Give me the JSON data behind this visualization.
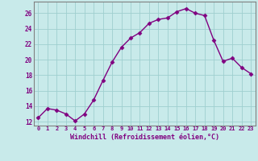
{
  "x": [
    0,
    1,
    2,
    3,
    4,
    5,
    6,
    7,
    8,
    9,
    10,
    11,
    12,
    13,
    14,
    15,
    16,
    17,
    18,
    19,
    20,
    21,
    22,
    23
  ],
  "y": [
    12.5,
    13.7,
    13.5,
    13.0,
    12.1,
    13.0,
    14.8,
    17.3,
    19.7,
    21.6,
    22.8,
    23.5,
    24.7,
    25.2,
    25.4,
    26.2,
    26.6,
    26.0,
    25.7,
    22.5,
    19.8,
    20.2,
    19.0,
    18.2
  ],
  "line_color": "#800080",
  "marker_color": "#800080",
  "bg_color": "#c8eaea",
  "grid_color": "#9fcfcf",
  "ylabel_ticks": [
    12,
    14,
    16,
    18,
    20,
    22,
    24,
    26
  ],
  "xlim": [
    -0.5,
    23.5
  ],
  "ylim": [
    11.5,
    27.5
  ],
  "xtick_labels": [
    "0",
    "1",
    "2",
    "3",
    "4",
    "5",
    "6",
    "7",
    "8",
    "9",
    "10",
    "11",
    "12",
    "13",
    "14",
    "15",
    "16",
    "17",
    "18",
    "19",
    "20",
    "21",
    "22",
    "23"
  ],
  "axis_color": "#808080",
  "font_color": "#800080",
  "xlabel": "Windchill (Refroidissement éolien,°C)",
  "marker_size": 2.5,
  "line_width": 1.0
}
